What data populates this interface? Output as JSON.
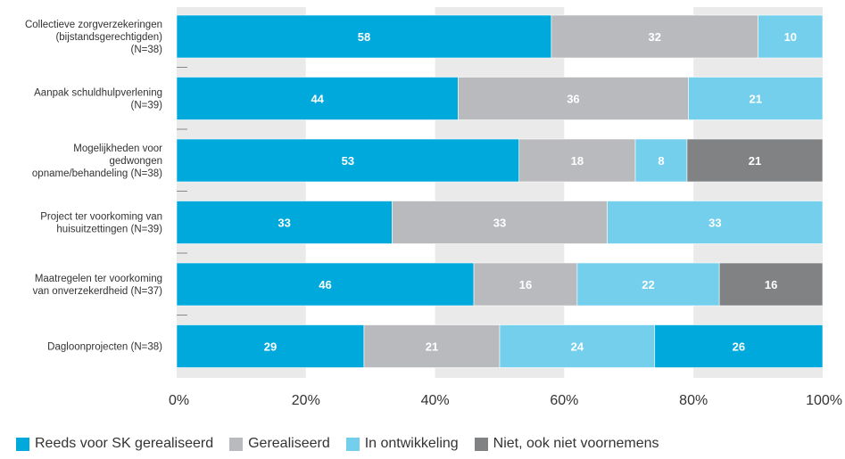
{
  "chart_data": {
    "type": "bar",
    "orientation": "horizontal",
    "stacked": true,
    "categories": [
      [
        "Collectieve zorgverzekeringen",
        "(bijstandsgerechtigden)",
        "(N=38)"
      ],
      [
        "Aanpak schuldhulpverlening",
        "(N=39)"
      ],
      [
        "Mogelijkheden voor",
        "gedwongen",
        "opname/behandeling (N=38)"
      ],
      [
        "Project ter voorkoming van",
        "huisuitzettingen (N=39)"
      ],
      [
        "Maatregelen ter voorkoming",
        "van onverzekerdheid (N=37)"
      ],
      [
        "Dagloonprojecten (N=38)"
      ]
    ],
    "series": [
      {
        "name": "Reeds voor SK gerealiseerd",
        "color": "#00a9dc",
        "values": [
          58,
          44,
          53,
          33,
          46,
          29
        ]
      },
      {
        "name": "Gerealiseerd",
        "color": "#b9babd",
        "values": [
          32,
          36,
          18,
          33,
          16,
          21
        ]
      },
      {
        "name": "In ontwikkeling",
        "color": "#73cfec",
        "values": [
          10,
          21,
          8,
          33,
          22,
          24
        ]
      },
      {
        "name": "Niet, ook niet voornemens",
        "color": "#808284",
        "values": [
          0,
          0,
          21,
          0,
          16,
          0
        ]
      }
    ],
    "last_bar_segment_colors": [
      "#00a9dc",
      "#b9babd",
      "#73cfec",
      "#00a9dc"
    ],
    "last_bar_values": [
      29,
      21,
      24,
      26
    ],
    "xlim": [
      0,
      100
    ],
    "xticks": [
      "0%",
      "20%",
      "40%",
      "60%",
      "80%",
      "100%"
    ],
    "grid": "alternating vertical bands",
    "legend_position": "bottom"
  }
}
